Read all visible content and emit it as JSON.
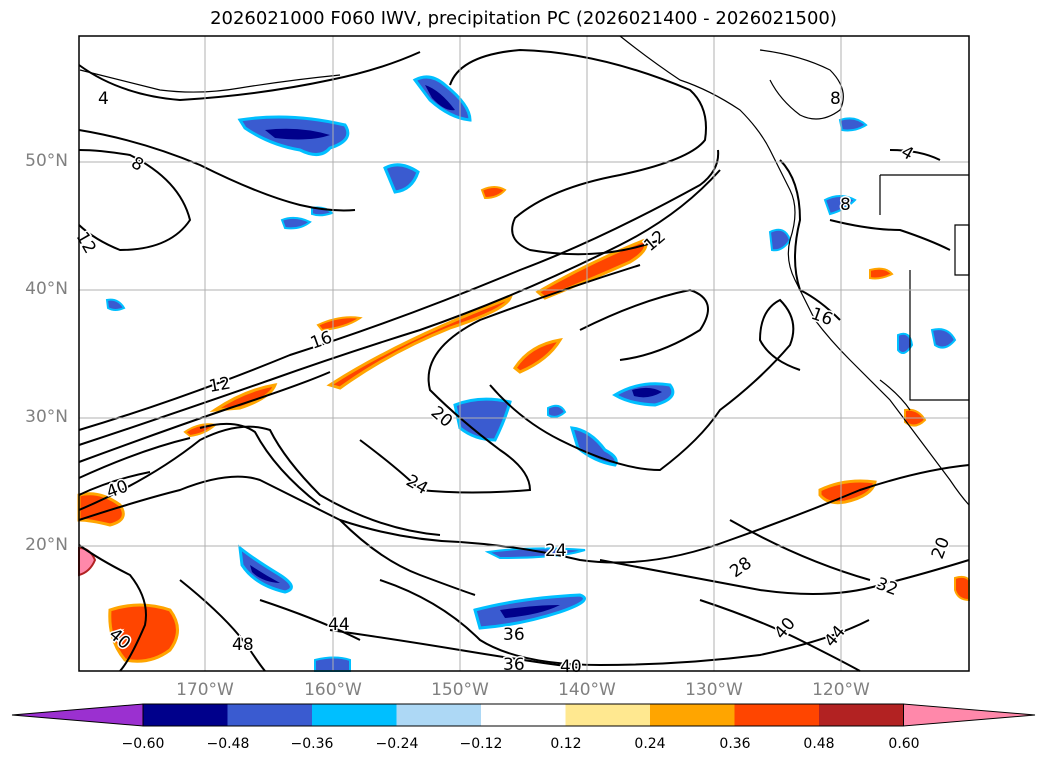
{
  "title": "2026021000 F060 IWV, precipitation PC (2026021400 - 2026021500)",
  "map": {
    "lat_labels": [
      "50°N",
      "40°N",
      "30°N",
      "20°N"
    ],
    "lon_labels": [
      "170°W",
      "160°W",
      "150°W",
      "140°W",
      "130°W",
      "120°W"
    ],
    "contour_labels": [
      "4",
      "8",
      "12",
      "12",
      "16",
      "12",
      "20",
      "24",
      "24",
      "28",
      "32",
      "36",
      "36",
      "40",
      "40",
      "44",
      "48",
      "40",
      "44",
      "40",
      "20",
      "8",
      "8",
      "16",
      "4"
    ]
  },
  "colorbar": {
    "ticks": [
      "−0.60",
      "−0.48",
      "−0.36",
      "−0.24",
      "−0.12",
      "0.12",
      "0.24",
      "0.36",
      "0.48",
      "0.60"
    ],
    "colors": [
      "#9b30d0",
      "#00008b",
      "#3a5bd0",
      "#00bfff",
      "#add8f5",
      "#ffffff",
      "#ffe890",
      "#ffa500",
      "#ff4500",
      "#b22222",
      "#ff88aa"
    ]
  }
}
